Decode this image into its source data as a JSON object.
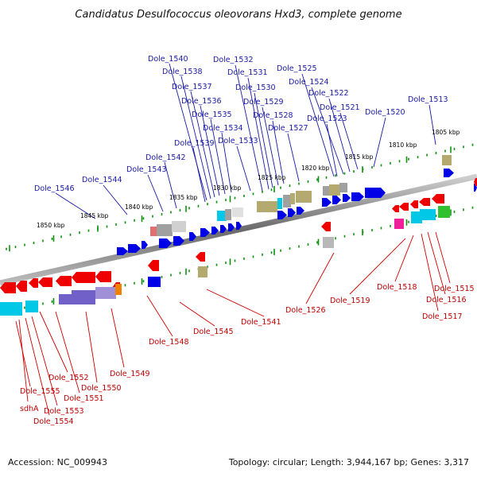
{
  "title": "Candidatus Desulfococcus oleovorans Hxd3, complete genome",
  "footer": {
    "accession": "Accession: NC_009943",
    "summary": "Topology: circular; Length: 3,944,167 bp; Genes: 3,317"
  },
  "scale_labels": [
    "1850 kbp",
    "1845 kbp",
    "1840 kbp",
    "1835 kbp",
    "1830 kbp",
    "1825 kbp",
    "1820 kbp",
    "1815 kbp",
    "1810 kbp",
    "1805 kbp"
  ],
  "forward_labels": [
    "Dole_1540",
    "Dole_1538",
    "Dole_1537",
    "Dole_1536",
    "Dole_1535",
    "Dole_1534",
    "Dole_1539",
    "Dole_1542",
    "Dole_1543",
    "Dole_1544",
    "Dole_1546",
    "Dole_1532",
    "Dole_1531",
    "Dole_1530",
    "Dole_1529",
    "Dole_1528",
    "Dole_1527",
    "Dole_1533",
    "Dole_1525",
    "Dole_1524",
    "Dole_1522",
    "Dole_1521",
    "Dole_1523",
    "Dole_1520",
    "Dole_1513"
  ],
  "reverse_labels": [
    "Dole_1552",
    "Dole_1555",
    "sdhA",
    "Dole_1553",
    "Dole_1554",
    "Dole_1551",
    "Dole_1550",
    "Dole_1549",
    "Dole_1548",
    "Dole_1545",
    "Dole_1541",
    "Dole_1526",
    "Dole_1519",
    "Dole_1518",
    "Dole_1515",
    "Dole_1516",
    "Dole_1517"
  ],
  "colors": {
    "forward_gene": "#0000e6",
    "reverse_gene": "#ee0000",
    "cds_cyan": "#00c8e6",
    "cds_olive": "#b4aa70",
    "cds_gray": "#a0a0a0",
    "cds_purple": "#7060c8",
    "cds_magenta": "#f0209a",
    "cds_green": "#30c030",
    "cds_orange": "#f08000",
    "backbone": "#808080",
    "ticks": "#109010",
    "forward_label": "#1a1aa6",
    "reverse_label": "#c00000"
  }
}
